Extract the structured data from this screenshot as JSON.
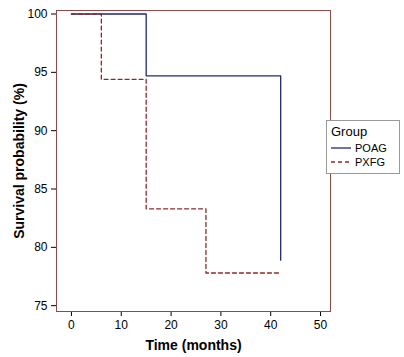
{
  "chart_data": {
    "type": "step",
    "x_label": "Time (months)",
    "y_label": "Survival probability (%)",
    "legend_title": "Group",
    "legend": "right",
    "xlim": [
      -3,
      52
    ],
    "xticks": [
      0,
      10,
      20,
      30,
      40,
      50
    ],
    "ylim": [
      74.5,
      100.3
    ],
    "yticks": [
      75,
      80,
      85,
      90,
      95,
      100
    ],
    "grid": false,
    "series": [
      {
        "name": "POAG",
        "color": "#1f2a6e",
        "line_style": "solid",
        "x": [
          0,
          15,
          42
        ],
        "values": [
          100,
          94.7,
          78.9
        ]
      },
      {
        "name": "PXFG",
        "color": "#8b2a2a",
        "line_style": "dashed",
        "x": [
          0,
          6,
          15,
          27,
          42
        ],
        "values": [
          100,
          94.4,
          83.3,
          77.8,
          77.8
        ]
      }
    ]
  }
}
